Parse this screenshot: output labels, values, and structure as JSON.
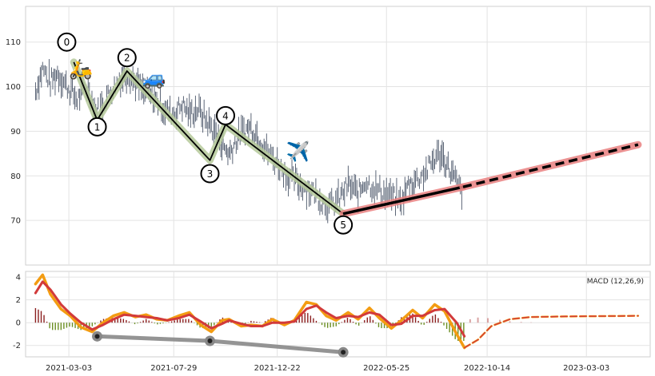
{
  "chart_data": [
    {
      "type": "line",
      "panel": "price",
      "ylim": [
        60,
        118
      ],
      "yticks": [
        70,
        80,
        90,
        100,
        110
      ],
      "grid": true,
      "x_date_range": [
        "2021-01-01",
        "2023-06-01"
      ],
      "series": [
        {
          "kind": "ohlc_bars",
          "color": "#4a5568",
          "points": [
            [
              "2021-01-15",
              99
            ],
            [
              "2021-01-25",
              104
            ],
            [
              "2021-02-05",
              101
            ],
            [
              "2021-02-15",
              103
            ],
            [
              "2021-03-01",
              100
            ],
            [
              "2021-03-15",
              97
            ],
            [
              "2021-03-25",
              100
            ],
            [
              "2021-04-01",
              99
            ],
            [
              "2021-04-10",
              94
            ],
            [
              "2021-04-20",
              96
            ],
            [
              "2021-05-01",
              99
            ],
            [
              "2021-05-15",
              102
            ],
            [
              "2021-05-25",
              103
            ],
            [
              "2021-06-05",
              101
            ],
            [
              "2021-06-15",
              99
            ],
            [
              "2021-06-25",
              98
            ],
            [
              "2021-07-05",
              97
            ],
            [
              "2021-07-15",
              95
            ],
            [
              "2021-07-29",
              94
            ],
            [
              "2021-08-10",
              96
            ],
            [
              "2021-08-20",
              94
            ],
            [
              "2021-09-01",
              95
            ],
            [
              "2021-09-15",
              92
            ],
            [
              "2021-09-25",
              90
            ],
            [
              "2021-10-05",
              87
            ],
            [
              "2021-10-15",
              85
            ],
            [
              "2021-10-25",
              88
            ],
            [
              "2021-11-05",
              90
            ],
            [
              "2021-11-15",
              91
            ],
            [
              "2021-11-25",
              89
            ],
            [
              "2021-12-05",
              86
            ],
            [
              "2021-12-22",
              83
            ],
            [
              "2022-01-05",
              80
            ],
            [
              "2022-01-15",
              79
            ],
            [
              "2022-01-25",
              78
            ],
            [
              "2022-02-05",
              77
            ],
            [
              "2022-02-20",
              75
            ],
            [
              "2022-03-05",
              73
            ],
            [
              "2022-03-20",
              75
            ],
            [
              "2022-04-01",
              78
            ],
            [
              "2022-04-15",
              76
            ],
            [
              "2022-04-25",
              79
            ],
            [
              "2022-05-10",
              77
            ],
            [
              "2022-05-25",
              76
            ],
            [
              "2022-06-05",
              75
            ],
            [
              "2022-06-15",
              74
            ],
            [
              "2022-06-25",
              78
            ],
            [
              "2022-07-05",
              79
            ],
            [
              "2022-07-20",
              81
            ],
            [
              "2022-08-01",
              84
            ],
            [
              "2022-08-10",
              85
            ],
            [
              "2022-08-20",
              82
            ],
            [
              "2022-08-30",
              79
            ],
            [
              "2022-09-10",
              76
            ]
          ]
        },
        {
          "kind": "wave",
          "color": "#000000",
          "highlight": "#b5c99a",
          "points": [
            [
              "2021-03-10",
              105.5
            ],
            [
              "2021-04-12",
              92.5
            ],
            [
              "2021-05-24",
              103.5
            ],
            [
              "2021-09-18",
              83.5
            ],
            [
              "2021-10-10",
              91.5
            ],
            [
              "2022-03-25",
              71.5
            ]
          ]
        },
        {
          "kind": "trend",
          "color": "#000000",
          "highlight": "#e98080",
          "points": [
            [
              "2022-03-25",
              71.5
            ],
            [
              "2022-09-10",
              77.5
            ]
          ]
        },
        {
          "kind": "forecast",
          "color": "#000000",
          "highlight": "#e98080",
          "dashed": true,
          "points": [
            [
              "2022-09-10",
              77.5
            ],
            [
              "2023-05-15",
              87
            ]
          ]
        }
      ],
      "wave_labels": [
        {
          "text": "0",
          "date": "2021-02-28",
          "y": 110
        },
        {
          "text": "1",
          "date": "2021-04-12",
          "y": 91
        },
        {
          "text": "2",
          "date": "2021-05-24",
          "y": 106.5
        },
        {
          "text": "3",
          "date": "2021-09-18",
          "y": 80.5
        },
        {
          "text": "4",
          "date": "2021-10-10",
          "y": 93.5
        },
        {
          "text": "5",
          "date": "2022-03-25",
          "y": 69
        }
      ],
      "markers": [
        {
          "icon": "scooter-emoji",
          "glyph": "🛵",
          "date": "2021-03-20",
          "y": 102.5
        },
        {
          "icon": "car-emoji",
          "glyph": "🚙",
          "date": "2021-07-01",
          "y": 100.5
        },
        {
          "icon": "airplane-emoji",
          "glyph": "✈️",
          "date": "2022-01-20",
          "y": 84
        }
      ]
    },
    {
      "type": "line",
      "panel": "macd",
      "legend": "MACD (12,26,9)",
      "legend_position": "top-right",
      "ylim": [
        -3,
        4.5
      ],
      "yticks": [
        -2,
        0,
        2,
        4
      ],
      "x_tick_labels": [
        "2021-03-03",
        "2021-07-29",
        "2021-12-22",
        "2022-05-25",
        "2022-10-14",
        "2023-03-03"
      ],
      "colors": {
        "macd": "#f39c12",
        "signal": "#d23a3a",
        "hist_pos": "#8b1f1f",
        "hist_neg": "#6b8e23",
        "support": "#888888"
      },
      "series": [
        {
          "name": "macd",
          "points": [
            [
              "2021-01-15",
              3.4
            ],
            [
              "2021-01-25",
              4.2
            ],
            [
              "2021-02-05",
              2.5
            ],
            [
              "2021-02-20",
              1.2
            ],
            [
              "2021-03-05",
              0.6
            ],
            [
              "2021-03-20",
              -0.4
            ],
            [
              "2021-04-05",
              -0.8
            ],
            [
              "2021-04-20",
              0.0
            ],
            [
              "2021-05-05",
              0.6
            ],
            [
              "2021-05-20",
              0.9
            ],
            [
              "2021-06-05",
              0.5
            ],
            [
              "2021-06-20",
              0.7
            ],
            [
              "2021-07-05",
              0.3
            ],
            [
              "2021-07-20",
              0.2
            ],
            [
              "2021-08-05",
              0.6
            ],
            [
              "2021-08-20",
              0.9
            ],
            [
              "2021-09-05",
              -0.2
            ],
            [
              "2021-09-20",
              -0.8
            ],
            [
              "2021-10-05",
              0.2
            ],
            [
              "2021-10-15",
              0.3
            ],
            [
              "2021-11-01",
              -0.3
            ],
            [
              "2021-11-15",
              -0.2
            ],
            [
              "2021-12-01",
              -0.3
            ],
            [
              "2021-12-15",
              0.3
            ],
            [
              "2022-01-01",
              -0.2
            ],
            [
              "2022-01-15",
              0.2
            ],
            [
              "2022-02-01",
              1.8
            ],
            [
              "2022-02-15",
              1.6
            ],
            [
              "2022-03-01",
              0.6
            ],
            [
              "2022-03-15",
              0.2
            ],
            [
              "2022-04-01",
              0.9
            ],
            [
              "2022-04-15",
              0.3
            ],
            [
              "2022-05-01",
              1.3
            ],
            [
              "2022-05-15",
              0.4
            ],
            [
              "2022-06-01",
              -0.5
            ],
            [
              "2022-06-15",
              0.2
            ],
            [
              "2022-07-01",
              1.1
            ],
            [
              "2022-07-15",
              0.4
            ],
            [
              "2022-08-01",
              1.6
            ],
            [
              "2022-08-15",
              1.0
            ],
            [
              "2022-09-01",
              -1.0
            ],
            [
              "2022-09-12",
              -2.2
            ]
          ]
        },
        {
          "name": "signal",
          "points": [
            [
              "2021-01-15",
              2.6
            ],
            [
              "2021-01-25",
              3.6
            ],
            [
              "2021-02-05",
              2.9
            ],
            [
              "2021-02-20",
              1.6
            ],
            [
              "2021-03-05",
              0.8
            ],
            [
              "2021-03-20",
              0.0
            ],
            [
              "2021-04-05",
              -0.6
            ],
            [
              "2021-04-20",
              -0.2
            ],
            [
              "2021-05-05",
              0.3
            ],
            [
              "2021-05-20",
              0.7
            ],
            [
              "2021-06-05",
              0.6
            ],
            [
              "2021-06-20",
              0.5
            ],
            [
              "2021-07-05",
              0.4
            ],
            [
              "2021-07-20",
              0.2
            ],
            [
              "2021-08-05",
              0.4
            ],
            [
              "2021-08-20",
              0.7
            ],
            [
              "2021-09-05",
              0.1
            ],
            [
              "2021-09-20",
              -0.5
            ],
            [
              "2021-10-05",
              -0.1
            ],
            [
              "2021-10-15",
              0.2
            ],
            [
              "2021-11-01",
              -0.1
            ],
            [
              "2021-11-15",
              -0.3
            ],
            [
              "2021-12-01",
              -0.3
            ],
            [
              "2021-12-15",
              0.0
            ],
            [
              "2022-01-01",
              0.0
            ],
            [
              "2022-01-15",
              0.1
            ],
            [
              "2022-02-01",
              1.2
            ],
            [
              "2022-02-15",
              1.5
            ],
            [
              "2022-03-01",
              0.9
            ],
            [
              "2022-03-15",
              0.4
            ],
            [
              "2022-04-01",
              0.6
            ],
            [
              "2022-04-15",
              0.5
            ],
            [
              "2022-05-01",
              0.9
            ],
            [
              "2022-05-15",
              0.7
            ],
            [
              "2022-06-01",
              -0.2
            ],
            [
              "2022-06-15",
              -0.1
            ],
            [
              "2022-07-01",
              0.6
            ],
            [
              "2022-07-15",
              0.6
            ],
            [
              "2022-08-01",
              1.1
            ],
            [
              "2022-08-15",
              1.2
            ],
            [
              "2022-09-01",
              0.0
            ],
            [
              "2022-09-12",
              -1.2
            ]
          ]
        },
        {
          "name": "macd_forecast",
          "dashed": true,
          "points": [
            [
              "2022-09-12",
              -2.2
            ],
            [
              "2022-10-01",
              -1.5
            ],
            [
              "2022-10-20",
              -0.3
            ],
            [
              "2022-11-15",
              0.3
            ],
            [
              "2022-12-15",
              0.5
            ],
            [
              "2023-02-01",
              0.55
            ],
            [
              "2023-05-15",
              0.6
            ]
          ]
        }
      ],
      "histogram_forecast": [
        [
          "2022-09-20",
          0.3
        ],
        [
          "2022-10-01",
          0.45
        ],
        [
          "2022-10-15",
          0.4
        ],
        [
          "2022-11-01",
          0.25
        ],
        [
          "2022-11-15",
          0.12
        ],
        [
          "2022-12-01",
          0.06
        ],
        [
          "2022-12-15",
          0.03
        ]
      ],
      "support_line": {
        "points": [
          [
            "2021-04-12",
            -1.2
          ],
          [
            "2021-09-18",
            -1.6
          ],
          [
            "2022-03-25",
            -2.6
          ]
        ]
      }
    }
  ]
}
